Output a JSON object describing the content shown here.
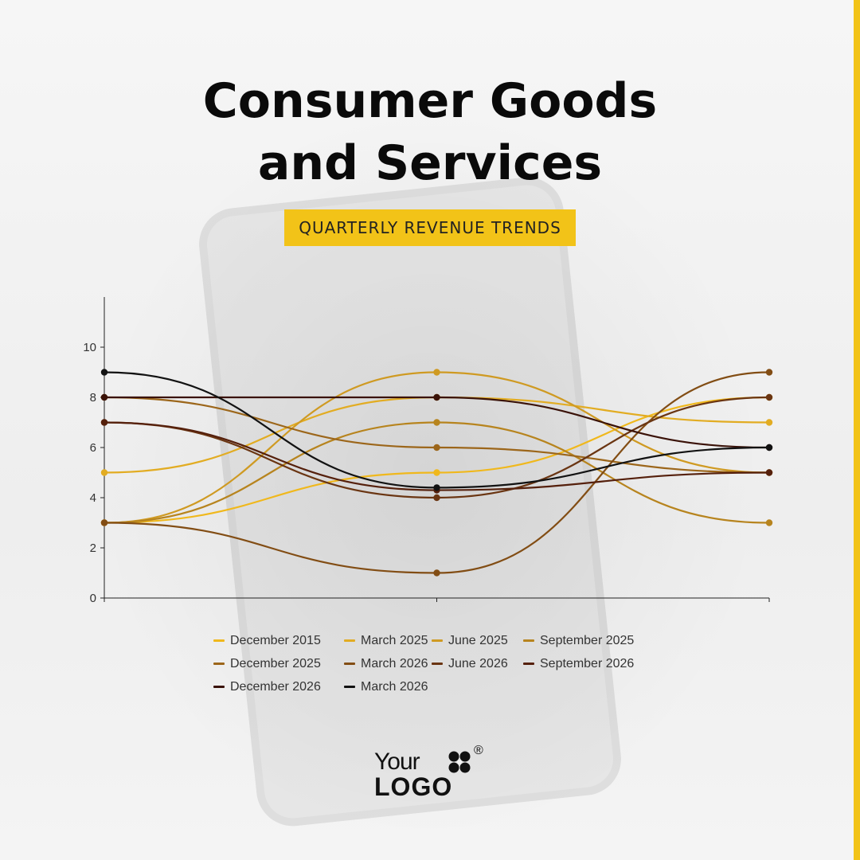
{
  "header": {
    "title_line1": "Consumer Goods",
    "title_line2": "and Services",
    "subtitle": "QUARTERLY REVENUE TRENDS"
  },
  "logo": {
    "word1": "Your",
    "word2": "LOGO",
    "registered": "®"
  },
  "colors": {
    "accent": "#f2c318"
  },
  "chart_data": {
    "type": "line",
    "smooth": true,
    "title": "",
    "xlabel": "",
    "ylabel": "",
    "ylim": [
      0,
      12
    ],
    "yticks": [
      0,
      2,
      4,
      6,
      8,
      10
    ],
    "x": [
      0,
      1,
      2
    ],
    "legend_position": "bottom",
    "grid": false,
    "series": [
      {
        "name": "December 2015",
        "color": "#f0b81c",
        "values": [
          3,
          5,
          8
        ]
      },
      {
        "name": "March 2025",
        "color": "#e2ac22",
        "values": [
          5,
          8,
          7
        ]
      },
      {
        "name": "June 2025",
        "color": "#cf9a22",
        "values": [
          3,
          9,
          5
        ]
      },
      {
        "name": "September 2025",
        "color": "#b7841e",
        "values": [
          3,
          7,
          3
        ]
      },
      {
        "name": "December 2025",
        "color": "#9c661a",
        "values": [
          8,
          6,
          5
        ]
      },
      {
        "name": "March 2026",
        "color": "#824d14",
        "values": [
          3,
          1,
          9
        ]
      },
      {
        "name": "June 2026",
        "color": "#6a3512",
        "values": [
          7,
          4,
          8
        ]
      },
      {
        "name": "September 2026",
        "color": "#55200c",
        "values": [
          7,
          4.3,
          5
        ]
      },
      {
        "name": "December 2026",
        "color": "#3a1208",
        "values": [
          8,
          8,
          6
        ]
      },
      {
        "name": "March 2026",
        "color": "#121212",
        "values": [
          9,
          4.4,
          6
        ]
      }
    ]
  }
}
